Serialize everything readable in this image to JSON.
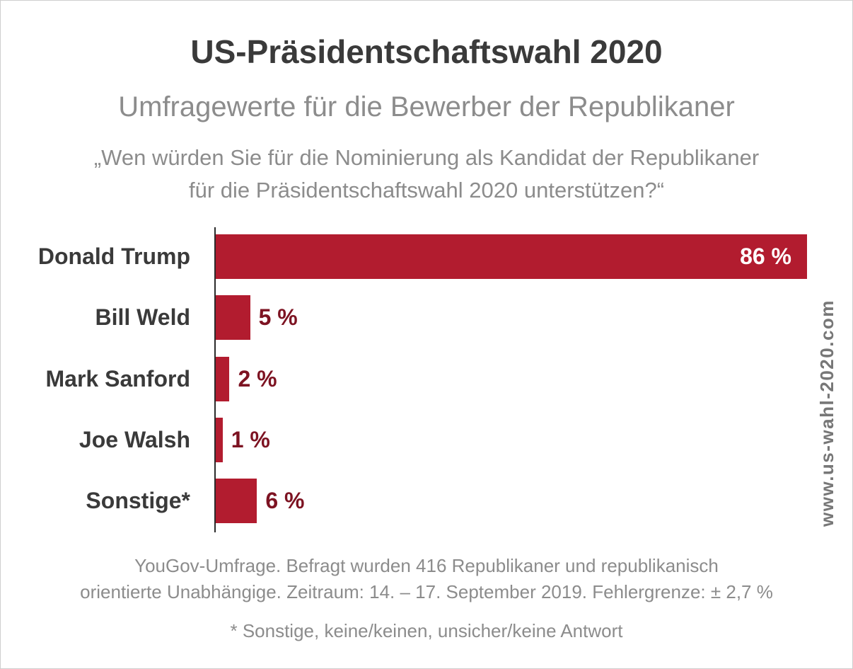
{
  "colors": {
    "bar": "#b21c2f",
    "value_label": "#7d1322",
    "value_label_inside": "#ffffff",
    "text_dark": "#3a3a3a",
    "text_gray": "#8c8c8c"
  },
  "watermark": "www.us-wahl-2020.com",
  "chart_data": {
    "type": "bar",
    "orientation": "horizontal",
    "title": "US-Präsidentschaftswahl 2020",
    "subtitle": "Umfragewerte für die Bewerber der Republikaner",
    "question": [
      "„Wen würden Sie für die Nominierung als Kandidat der Republikaner",
      "für die Präsidentschaftswahl 2020 unterstützen?“"
    ],
    "categories": [
      "Donald Trump",
      "Bill Weld",
      "Mark Sanford",
      "Joe Walsh",
      "Sonstige*"
    ],
    "values": [
      86,
      5,
      2,
      1,
      6
    ],
    "value_labels": [
      "86 %",
      "5 %",
      "2 %",
      "1 %",
      "6 %"
    ],
    "unit": "%",
    "xlim": [
      0,
      86
    ],
    "grid": false,
    "legend": "none",
    "source_note": [
      "YouGov-Umfrage. Befragt wurden 416 Republikaner und republikanisch",
      "orientierte Unabhängige. Zeitraum: 14. – 17. September 2019. Fehlergrenze: ± 2,7 %"
    ],
    "footnote": "* Sonstige, keine/keinen, unsicher/keine Antwort"
  }
}
